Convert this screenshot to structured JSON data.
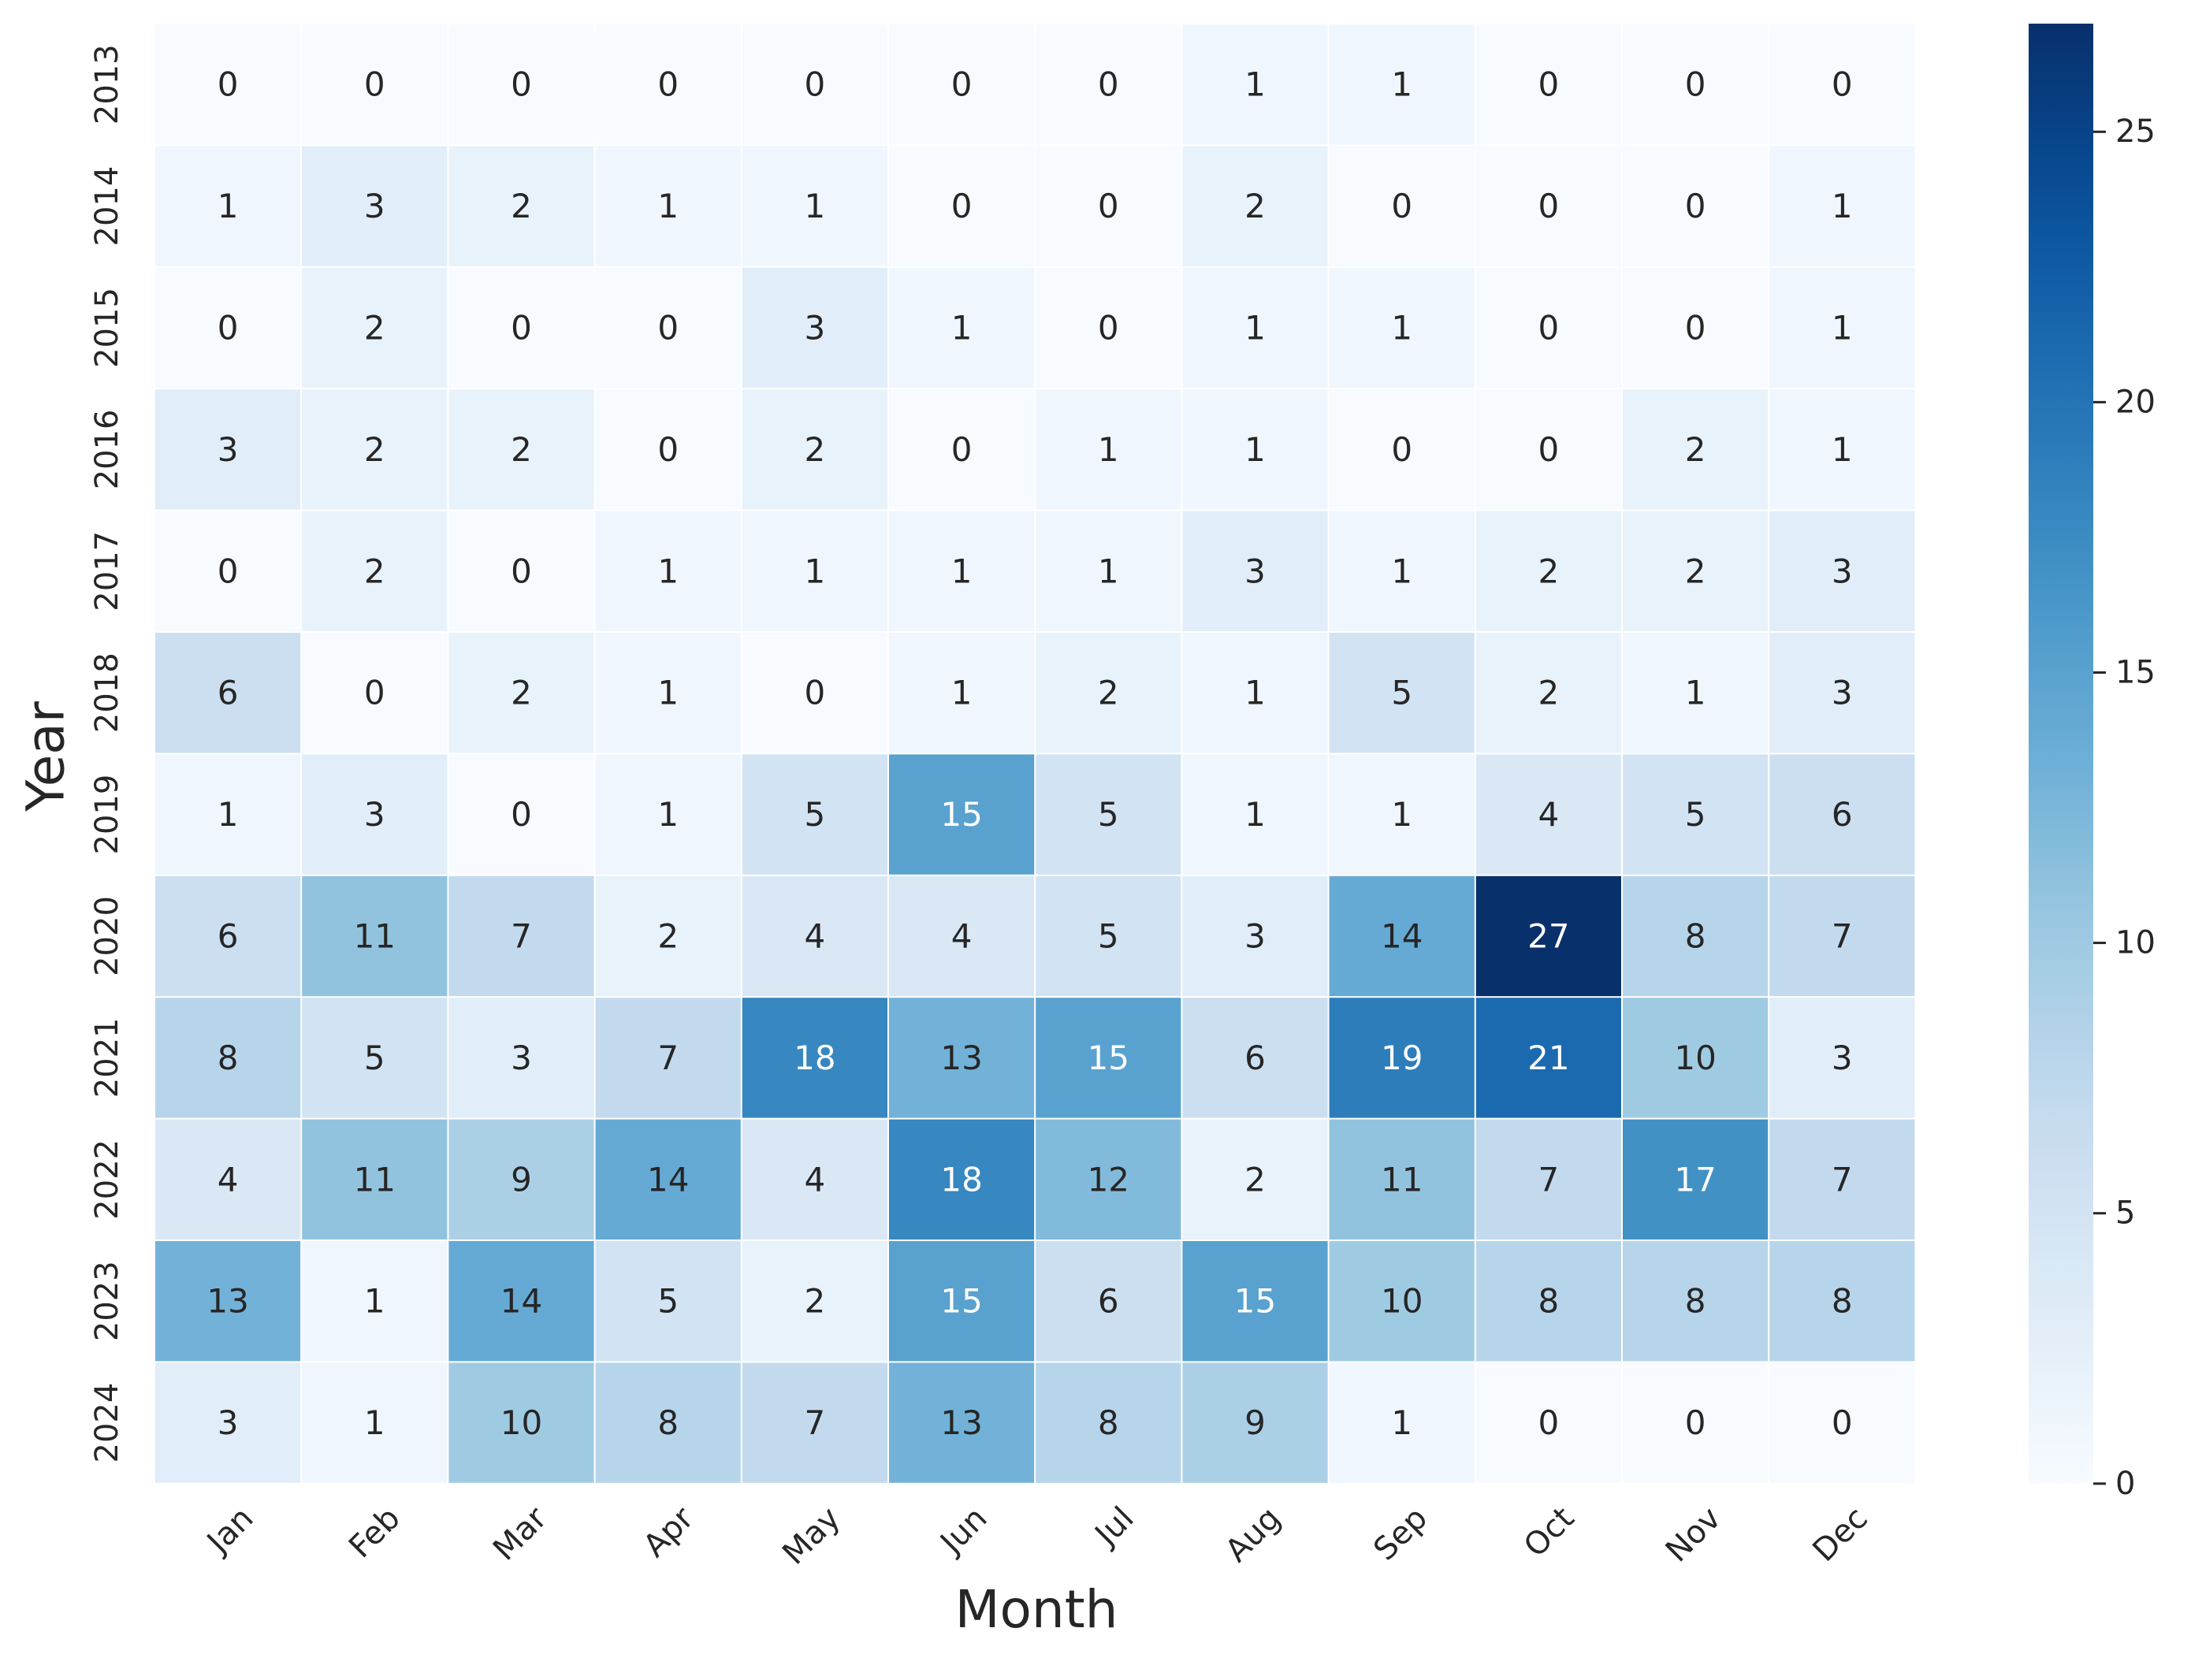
{
  "chart_data": {
    "type": "heatmap",
    "xlabel": "Month",
    "ylabel": "Year",
    "x_categories": [
      "Jan",
      "Feb",
      "Mar",
      "Apr",
      "May",
      "Jun",
      "Jul",
      "Aug",
      "Sep",
      "Oct",
      "Nov",
      "Dec"
    ],
    "y_categories": [
      "2013",
      "2014",
      "2015",
      "2016",
      "2017",
      "2018",
      "2019",
      "2020",
      "2021",
      "2022",
      "2023",
      "2024"
    ],
    "values": [
      [
        0,
        0,
        0,
        0,
        0,
        0,
        0,
        1,
        1,
        0,
        0,
        0
      ],
      [
        1,
        3,
        2,
        1,
        1,
        0,
        0,
        2,
        0,
        0,
        0,
        1
      ],
      [
        0,
        2,
        0,
        0,
        3,
        1,
        0,
        1,
        1,
        0,
        0,
        1
      ],
      [
        3,
        2,
        2,
        0,
        2,
        0,
        1,
        1,
        0,
        0,
        2,
        1
      ],
      [
        0,
        2,
        0,
        1,
        1,
        1,
        1,
        3,
        1,
        2,
        2,
        3
      ],
      [
        6,
        0,
        2,
        1,
        0,
        1,
        2,
        1,
        5,
        2,
        1,
        3
      ],
      [
        1,
        3,
        0,
        1,
        5,
        15,
        5,
        1,
        1,
        4,
        5,
        6
      ],
      [
        6,
        11,
        7,
        2,
        4,
        4,
        5,
        3,
        14,
        27,
        8,
        7
      ],
      [
        8,
        5,
        3,
        7,
        18,
        13,
        15,
        6,
        19,
        21,
        10,
        3
      ],
      [
        4,
        11,
        9,
        14,
        4,
        18,
        12,
        2,
        11,
        7,
        17,
        7
      ],
      [
        13,
        1,
        14,
        5,
        2,
        15,
        6,
        15,
        10,
        8,
        8,
        8
      ],
      [
        3,
        1,
        10,
        8,
        7,
        13,
        8,
        9,
        1,
        0,
        0,
        0
      ]
    ],
    "colorscale": "Blues",
    "vmin": 0,
    "vmax": 27,
    "colorbar_ticks": [
      0,
      5,
      10,
      15,
      20,
      25
    ],
    "annotations": true,
    "grid": false
  }
}
